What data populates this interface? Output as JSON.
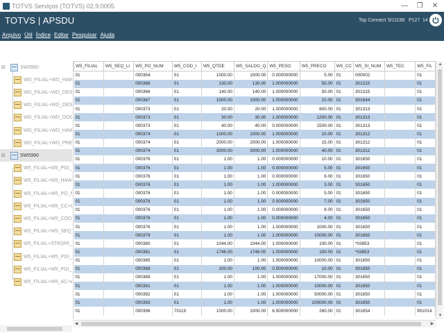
{
  "window": {
    "title": "TOTVS Serviços (TOTVS) 02.9.0005",
    "controls": [
      "—",
      "❐",
      "✕"
    ]
  },
  "header": {
    "brand": "TOTVS | APSDU",
    "server": "Top Connect",
    "date": "5/11198",
    "port": "P127",
    "extra": "14"
  },
  "menu": [
    "Arquivo",
    "Útil",
    "Índice",
    "Editar",
    "Pesquisar",
    "Ajuda"
  ],
  "tree": {
    "nodes": [
      {
        "label": "SW0990",
        "type": "table",
        "expander": "⊟",
        "selected": false
      },
      {
        "label": "WD_FILIAL+WD_HAWB+",
        "type": "index"
      },
      {
        "label": "WD_FILIAL+WD_DESPE",
        "type": "index"
      },
      {
        "label": "WD_FILIAL+WD_DESPE",
        "type": "index"
      },
      {
        "label": "WD_FILIAL+WD_DOCTO",
        "type": "index"
      },
      {
        "label": "WD_FILIAL+WD_HAWB+",
        "type": "index"
      },
      {
        "label": "WD_FILIAL+WD_PREFIX",
        "type": "index"
      },
      {
        "label": "SW5990",
        "type": "table",
        "expander": "⊟",
        "selected": true
      },
      {
        "label": "W5_FILIAL+W5_PGI_NU",
        "type": "index"
      },
      {
        "label": "W5_FILIAL+W5_HAWB",
        "type": "index"
      },
      {
        "label": "W5_FILIAL+W5_PO_NU",
        "type": "index"
      },
      {
        "label": "W5_FILIAL+W5_CC+W5",
        "type": "index"
      },
      {
        "label": "W5_FILIAL+W5_COD_I",
        "type": "index"
      },
      {
        "label": "W5_FILIAL+W5_SEQ_",
        "type": "index"
      },
      {
        "label": "W5_FILIAL+STR(W5_SEQ",
        "type": "index"
      },
      {
        "label": "W5_FILIAL+W5_PGI_NU",
        "type": "index"
      },
      {
        "label": "W5_FILIAL+W5_PGI_NU",
        "type": "index"
      },
      {
        "label": "W5_FILIAL+W5_AC+W5_",
        "type": "index"
      }
    ]
  },
  "grid": {
    "columns": [
      "W5_FILIAL",
      "W5_SEQ_LI",
      "W5_PO_NUM",
      "W5_COD_I",
      "W5_QTDE",
      "W5_SALDO_Q",
      "W5_PESO",
      "W5_PRECO",
      "W5_CC",
      "W5_SI_NUM",
      "W5_TEC",
      "W5_FA"
    ],
    "rows": [
      [
        "01",
        "",
        "000354",
        "01",
        "1000.00",
        "1000.00",
        "0.000000000",
        "5.00",
        "01",
        "000002",
        "",
        "01"
      ],
      [
        "01",
        "",
        "000366",
        "01",
        "130.00",
        "130.00",
        "1.000000000",
        "50.00",
        "01",
        "301315",
        "",
        "01"
      ],
      [
        "01",
        "",
        "000366",
        "01",
        "140.00",
        "140.00",
        "1.000000000",
        "50.00",
        "01",
        "301315",
        "",
        "01"
      ],
      [
        "01",
        "",
        "000367",
        "01",
        "1000.00",
        "1000.00",
        "1.000000000",
        "10.00",
        "01",
        "301644",
        "",
        "01"
      ],
      [
        "01",
        "",
        "000373",
        "01",
        "20.00",
        "20.00",
        "1.000000000",
        "600.00",
        "01",
        "301313",
        "",
        "01"
      ],
      [
        "01",
        "",
        "000373",
        "01",
        "30.00",
        "30.00",
        "1.000000000",
        "1200.00",
        "01",
        "301313",
        "",
        "01"
      ],
      [
        "01",
        "",
        "000373",
        "01",
        "40.00",
        "40.00",
        "0.000000000",
        "1500.00",
        "01",
        "301313",
        "",
        "01"
      ],
      [
        "01",
        "",
        "000374",
        "01",
        "1000.00",
        "1000.00",
        "1.000000000",
        "10.00",
        "01",
        "301312",
        "",
        "01"
      ],
      [
        "01",
        "",
        "000374",
        "01",
        "2000.00",
        "2000.00",
        "1.000000000",
        "15.00",
        "01",
        "301312",
        "",
        "01"
      ],
      [
        "01",
        "",
        "000374",
        "01",
        "3000.00",
        "3000.00",
        "1.000000000",
        "40.00",
        "01",
        "301312",
        "",
        "01"
      ],
      [
        "01",
        "",
        "000376",
        "01",
        "1.00",
        "1.00",
        "0.000000000",
        "10.00",
        "01",
        "301650",
        "",
        "01"
      ],
      [
        "01",
        "",
        "000376",
        "01",
        "1.00",
        "1.00",
        "0.000000000",
        "5.00",
        "01",
        "301650",
        "",
        "01"
      ],
      [
        "01",
        "",
        "000376",
        "01",
        "1.00",
        "1.00",
        "0.000000000",
        "6.00",
        "01",
        "301650",
        "",
        "01"
      ],
      [
        "01",
        "",
        "000376",
        "01",
        "1.00",
        "1.00",
        "1.000000000",
        "3.00",
        "01",
        "301650",
        "",
        "01"
      ],
      [
        "01",
        "",
        "000376",
        "01",
        "1.00",
        "1.00",
        "0.000000000",
        "5.00",
        "01",
        "301650",
        "",
        "01"
      ],
      [
        "01",
        "",
        "000376",
        "01",
        "1.00",
        "1.00",
        "0.000000000",
        "7.00",
        "01",
        "301650",
        "",
        "01"
      ],
      [
        "01",
        "",
        "000376",
        "01",
        "1.00",
        "1.00",
        "0.000000000",
        "8.00",
        "01",
        "301650",
        "",
        "01"
      ],
      [
        "01",
        "",
        "000376",
        "01",
        "1.00",
        "1.00",
        "0.000000000",
        "4.00",
        "01",
        "301650",
        "",
        "01"
      ],
      [
        "01",
        "",
        "000376",
        "01",
        "1.00",
        "1.00",
        "1.000000000",
        "1000.00",
        "01",
        "301650",
        "",
        "01"
      ],
      [
        "01",
        "",
        "000379",
        "01",
        "1.00",
        "1.00",
        "1.000000000",
        "10000.00",
        "01",
        "301650",
        "",
        "01"
      ],
      [
        "01",
        "",
        "000380",
        "01",
        "1044.00",
        "1044.00",
        "1.000000000",
        "100.00",
        "01",
        "*03853",
        "",
        "01"
      ],
      [
        "01",
        "",
        "000381",
        "01",
        "1746.00",
        "1746.00",
        "1.000000000",
        "100.00",
        "01",
        "*03853",
        "",
        "01"
      ],
      [
        "01",
        "",
        "000385",
        "01",
        "1.00",
        "1.00",
        "1.000000000",
        "10000.00",
        "01",
        "301650",
        "",
        "01"
      ],
      [
        "01",
        "",
        "000388",
        "01",
        "100.00",
        "100.00",
        "0.500000000",
        "10.00",
        "01",
        "301650",
        "",
        "01"
      ],
      [
        "01",
        "",
        "000389",
        "01",
        "1.00",
        "1.00",
        "1.000000000",
        "17000.00",
        "01",
        "301650",
        "",
        "01"
      ],
      [
        "01",
        "",
        "000391",
        "01",
        "1.00",
        "1.00",
        "1.000000000",
        "10000.00",
        "01",
        "301650",
        "",
        "01"
      ],
      [
        "01",
        "",
        "000392",
        "01",
        "1.00",
        "1.00",
        "1.000000000",
        "50000.00",
        "01",
        "301650",
        "",
        "01"
      ],
      [
        "01",
        "",
        "000393",
        "01",
        "1.00",
        "1.00",
        "1.000000000",
        "100000.00",
        "01",
        "301650",
        "",
        "01"
      ],
      [
        "01",
        "",
        "000396",
        "70119",
        "1000.00",
        "1000.00",
        "6.500000000",
        "260.00",
        "01",
        "301654",
        "",
        "901014"
      ]
    ]
  },
  "colors": {
    "header_bg": "#2c4f66",
    "row_alt_bg": "#bed3ea"
  }
}
